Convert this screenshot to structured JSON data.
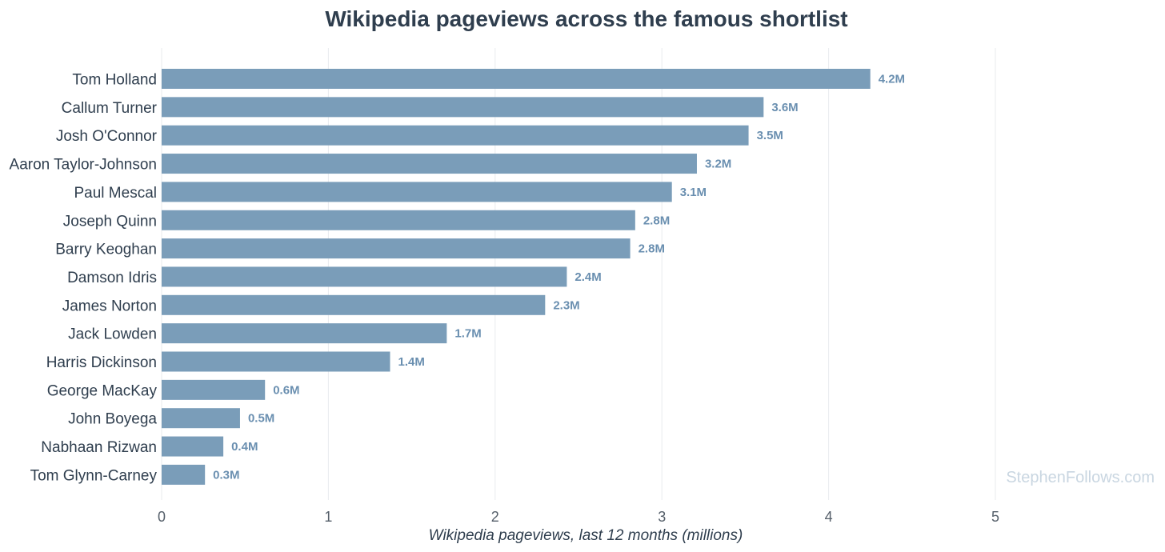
{
  "chart_data": {
    "type": "bar",
    "orientation": "horizontal",
    "title": "Wikipedia pageviews across the famous shortlist",
    "xlabel": "Wikipedia pageviews, last 12 months (millions)",
    "ylabel": "",
    "xlim": [
      0,
      5.4
    ],
    "xticks": [
      0,
      1,
      2,
      3,
      4,
      5
    ],
    "grid": "vertical",
    "categories": [
      "Tom Holland",
      "Callum Turner",
      "Josh O'Connor",
      "Aaron Taylor-Johnson",
      "Paul Mescal",
      "Joseph Quinn",
      "Barry Keoghan",
      "Damson Idris",
      "James Norton",
      "Jack Lowden",
      "Harris Dickinson",
      "George MacKay",
      "John Boyega",
      "Nabhaan Rizwan",
      "Tom Glynn-Carney"
    ],
    "values": [
      4.25,
      3.61,
      3.52,
      3.21,
      3.06,
      2.84,
      2.81,
      2.43,
      2.3,
      1.71,
      1.37,
      0.62,
      0.47,
      0.37,
      0.26
    ],
    "data_labels": [
      "4.2M",
      "3.6M",
      "3.5M",
      "3.2M",
      "3.1M",
      "2.8M",
      "2.8M",
      "2.4M",
      "2.3M",
      "1.7M",
      "1.4M",
      "0.6M",
      "0.5M",
      "0.4M",
      "0.3M"
    ]
  },
  "watermark": "StephenFollows.com",
  "colors": {
    "bar": "#7a9db9",
    "value_label": "#6a8fb0",
    "title": "#2f3e4e",
    "watermark": "#c9d6e1"
  }
}
